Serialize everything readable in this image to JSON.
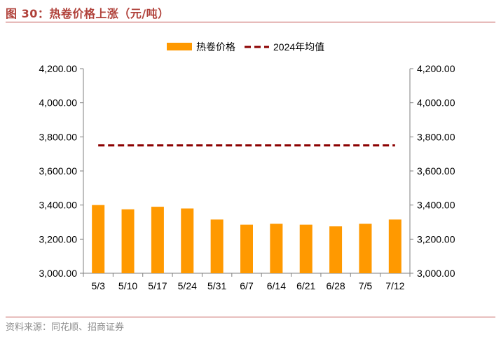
{
  "figure": {
    "title": "图 30：热卷价格上涨（元/吨）",
    "source": "资料来源：同花顺、招商证券"
  },
  "colors": {
    "bar": "#FF9900",
    "avg_line": "#8B0000",
    "title": "#B0413A",
    "axis": "#7f7f7f"
  },
  "chart_data": {
    "type": "bar",
    "title": "",
    "categories": [
      "5/3",
      "5/10",
      "5/17",
      "5/24",
      "5/31",
      "6/7",
      "6/14",
      "6/21",
      "6/28",
      "7/5",
      "7/12"
    ],
    "series": [
      {
        "name": "热卷价格",
        "type": "bar",
        "values": [
          3400,
          3375,
          3390,
          3380,
          3315,
          3285,
          3290,
          3285,
          3275,
          3290,
          3315
        ]
      },
      {
        "name": "2024年均值",
        "type": "dashed-line",
        "values": [
          3750,
          3750,
          3750,
          3750,
          3750,
          3750,
          3750,
          3750,
          3750,
          3750,
          3750
        ]
      }
    ],
    "ylim": [
      3000,
      4200
    ],
    "yticks": [
      3000,
      3200,
      3400,
      3600,
      3800,
      4000,
      4200
    ],
    "ytick_labels": [
      "3,000.00",
      "3,200.00",
      "3,400.00",
      "3,600.00",
      "3,800.00",
      "4,000.00",
      "4,200.00"
    ],
    "secondary_ytick_labels": [
      "3,000.00",
      "3,200.00",
      "3,400.00",
      "3,600.00",
      "3,800.00",
      "4,000.00",
      "4,200.00"
    ],
    "xlabel": "",
    "ylabel": "",
    "legend_position": "top-center"
  }
}
